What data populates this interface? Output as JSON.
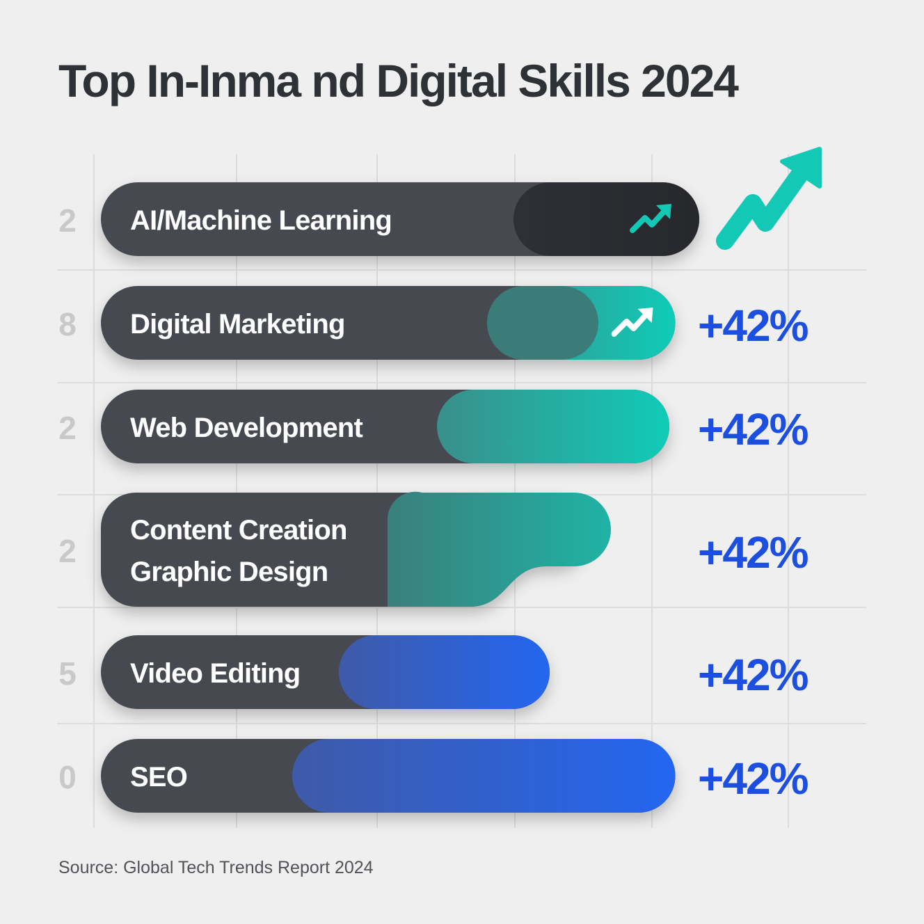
{
  "title": "Top In-Inma nd Digital Skills 2024",
  "source": "Source: Global Tech Trends Report 2024",
  "colors": {
    "background": "#efefef",
    "bar_base": "#474a51",
    "bar_ai_accent": "#2a2c31",
    "teal": "#14c8b6",
    "blue": "#2563eb",
    "grid": "#dcdcdc",
    "value_text": "#1c4fe0",
    "rank_text": "#c9c9c9"
  },
  "chart_data": {
    "type": "bar",
    "orientation": "horizontal",
    "categories": [
      "AI/Machine Learning",
      "Digital Marketing",
      "Web Development",
      "Content Creation\nGraphic Design",
      "Video Editing",
      "SEO"
    ],
    "values": [
      100,
      96,
      95,
      85,
      75,
      96
    ],
    "value_labels": [
      "",
      "+42%",
      "+42%",
      "+42%",
      "+42%",
      "+42%"
    ],
    "left_labels": [
      "2",
      "8",
      "2",
      "2",
      "5",
      "0"
    ],
    "accents": [
      "dark",
      "teal",
      "teal",
      "teal",
      "blue",
      "blue"
    ],
    "trend_icons": [
      "trend-up-icon",
      "trend-up-icon",
      "",
      "",
      "",
      ""
    ],
    "big_trend_icon": "trend-up-arrow-icon",
    "xlim": [
      0,
      100
    ],
    "grid": true
  }
}
